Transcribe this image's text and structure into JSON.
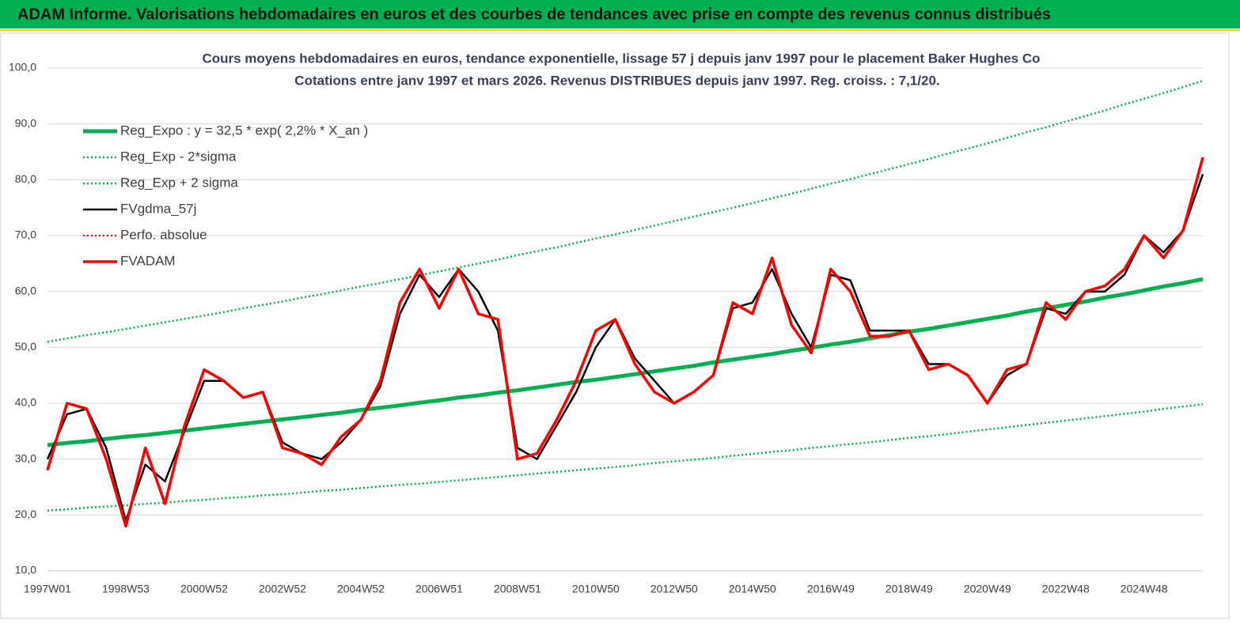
{
  "header": {
    "title": "ADAM Informe. Valorisations hebdomadaires en euros et des courbes de tendances avec prise en compte des revenus connus distribués"
  },
  "chart_data": {
    "type": "line",
    "title": "Cours moyens hebdomadaires en euros, tendance exponentielle, lissage 57 j depuis janv 1997 pour le placement Baker Hughes Co",
    "subtitle": "Cotations entre janv 1997 et mars 2026. Revenus DISTRIBUES depuis janv 1997. Reg. croiss. : 7,1/20.",
    "categories": [
      "1997W01",
      null,
      null,
      null,
      "1998W53",
      null,
      null,
      null,
      "2000W52",
      null,
      null,
      null,
      "2002W52",
      null,
      null,
      null,
      "2004W52",
      null,
      null,
      null,
      "2006W51",
      null,
      null,
      null,
      "2008W51",
      null,
      null,
      null,
      "2010W50",
      null,
      null,
      null,
      "2012W50",
      null,
      null,
      null,
      "2014W50",
      null,
      null,
      null,
      "2016W49",
      null,
      null,
      null,
      "2018W49",
      null,
      null,
      null,
      "2020W49",
      null,
      null,
      null,
      "2022W48",
      null,
      null,
      null,
      "2024W48",
      null,
      null,
      null
    ],
    "ylim": [
      10,
      100
    ],
    "yticks": [
      {
        "value": 10,
        "label": "10,0"
      },
      {
        "value": 20,
        "label": "20,0"
      },
      {
        "value": 30,
        "label": "30,0"
      },
      {
        "value": 40,
        "label": "40,0"
      },
      {
        "value": 50,
        "label": "50,0"
      },
      {
        "value": 60,
        "label": "60,0"
      },
      {
        "value": 70,
        "label": "70,0"
      },
      {
        "value": 80,
        "label": "80,0"
      },
      {
        "value": 90,
        "label": "90,0"
      },
      {
        "value": 100,
        "label": "100,0"
      }
    ],
    "grid": true,
    "series": [
      {
        "name": "Reg_Expo : y = 32,5 * exp( 2,2% *  X_an )",
        "color": "#00b050",
        "dash": "solid",
        "width": 5,
        "values": [
          32.5,
          32.9,
          33.2,
          33.6,
          34.0,
          34.3,
          34.7,
          35.1,
          35.5,
          35.9,
          36.3,
          36.7,
          37.1,
          37.5,
          37.9,
          38.3,
          38.8,
          39.2,
          39.6,
          40.1,
          40.5,
          41.0,
          41.4,
          41.9,
          42.3,
          42.8,
          43.3,
          43.8,
          44.2,
          44.7,
          45.2,
          45.7,
          46.2,
          46.7,
          47.3,
          47.8,
          48.3,
          48.8,
          49.4,
          49.9,
          50.5,
          51.0,
          51.6,
          52.2,
          52.8,
          53.3,
          53.9,
          54.5,
          55.1,
          55.7,
          56.4,
          57.0,
          57.6,
          58.2,
          58.9,
          59.5,
          60.2,
          60.9,
          61.5,
          62.2
        ]
      },
      {
        "name": "Reg_Exp - 2*sigma",
        "color": "#00b050",
        "dash": "dotted",
        "width": 2.5,
        "values": [
          20.8,
          21.0,
          21.3,
          21.5,
          21.7,
          22.0,
          22.2,
          22.5,
          22.7,
          23.0,
          23.2,
          23.5,
          23.7,
          24.0,
          24.3,
          24.5,
          24.8,
          25.1,
          25.4,
          25.6,
          25.9,
          26.2,
          26.5,
          26.8,
          27.1,
          27.4,
          27.7,
          28.0,
          28.3,
          28.6,
          28.9,
          29.3,
          29.6,
          29.9,
          30.2,
          30.6,
          30.9,
          31.3,
          31.6,
          32.0,
          32.3,
          32.7,
          33.0,
          33.4,
          33.8,
          34.1,
          34.5,
          34.9,
          35.3,
          35.7,
          36.1,
          36.5,
          36.9,
          37.3,
          37.7,
          38.1,
          38.5,
          39.0,
          39.4,
          39.8
        ]
      },
      {
        "name": "Reg_Exp + 2 sigma",
        "color": "#00b050",
        "dash": "dotted",
        "width": 2.5,
        "values": [
          51.0,
          51.6,
          52.2,
          52.7,
          53.3,
          53.9,
          54.5,
          55.1,
          55.7,
          56.3,
          57.0,
          57.6,
          58.2,
          58.9,
          59.5,
          60.2,
          60.9,
          61.5,
          62.2,
          62.9,
          63.6,
          64.3,
          65.0,
          65.7,
          66.5,
          67.2,
          67.9,
          68.7,
          69.5,
          70.2,
          71.0,
          71.8,
          72.6,
          73.4,
          74.2,
          75.0,
          75.8,
          76.7,
          77.5,
          78.4,
          79.3,
          80.1,
          81.0,
          81.9,
          82.8,
          83.7,
          84.7,
          85.6,
          86.5,
          87.5,
          88.5,
          89.4,
          90.4,
          91.4,
          92.4,
          93.5,
          94.5,
          95.5,
          96.6,
          97.7
        ]
      },
      {
        "name": "FVgdma_57j",
        "color": "#000000",
        "dash": "solid",
        "width": 2.5,
        "values": [
          30,
          38,
          39,
          32,
          19,
          29,
          26,
          35,
          44,
          44,
          41,
          42,
          33,
          31,
          30,
          33,
          37,
          43,
          56,
          63,
          59,
          64,
          60,
          53,
          32,
          30,
          36,
          42,
          50,
          55,
          48,
          44,
          40,
          42,
          45,
          57,
          58,
          64,
          56,
          50,
          63,
          62,
          53,
          53,
          53,
          47,
          47,
          45,
          40,
          45,
          47,
          57,
          56,
          60,
          60,
          63,
          70,
          67,
          71,
          81
        ]
      },
      {
        "name": "Perfo. absolue",
        "color": "#ff0000",
        "dash": "dotted",
        "width": 2,
        "values": [
          null,
          null,
          null,
          null,
          null,
          null,
          null,
          null,
          null,
          null,
          null,
          null,
          null,
          null,
          null,
          null,
          null,
          null,
          null,
          null,
          null,
          null,
          null,
          null,
          null,
          null,
          null,
          null,
          null,
          null,
          null,
          null,
          null,
          null,
          null,
          null,
          null,
          null,
          null,
          null,
          null,
          null,
          null,
          null,
          null,
          null,
          null,
          null,
          null,
          null,
          null,
          null,
          null,
          null,
          null,
          null,
          null,
          null,
          null,
          null
        ]
      },
      {
        "name": "FVADAM",
        "color": "#ff0000",
        "dash": "solid",
        "width": 3.5,
        "values": [
          28,
          40,
          39,
          30,
          18,
          32,
          22,
          36,
          46,
          44,
          41,
          42,
          32,
          31,
          29,
          34,
          37,
          44,
          58,
          64,
          57,
          64,
          56,
          55,
          30,
          31,
          37,
          44,
          53,
          55,
          47,
          42,
          40,
          42,
          45,
          58,
          56,
          66,
          54,
          49,
          64,
          60,
          52,
          52,
          53,
          46,
          47,
          45,
          40,
          46,
          47,
          58,
          55,
          60,
          61,
          64,
          70,
          66,
          71,
          84
        ]
      }
    ]
  }
}
